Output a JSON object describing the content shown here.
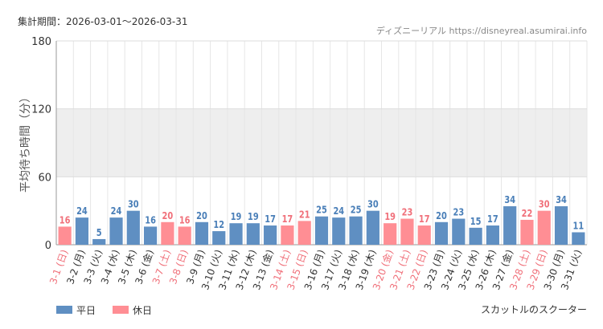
{
  "header": {
    "period": "集計期間：2026-03-01〜2026-03-31",
    "source": "ディズニーリアル https://disneyreal.asumirai.info",
    "footer": "スカットルのスクーター"
  },
  "colors": {
    "weekday": "#5f8fc2",
    "weekday_label": "#4a7fb8",
    "holiday": "#ff8e94",
    "holiday_label": "#f0707a",
    "band": "#eeeeee",
    "grid": "#e6e6e6"
  },
  "chart_data": {
    "type": "bar",
    "ylabel": "平均待ち時間（分）",
    "ylim": [
      0,
      180
    ],
    "yticks": [
      0,
      60,
      120,
      180
    ],
    "band": [
      60,
      120
    ],
    "grid": true,
    "legend_position": "bottom-left",
    "legend": [
      {
        "name": "平日",
        "key": "weekday"
      },
      {
        "name": "休日",
        "key": "holiday"
      }
    ],
    "categories": [
      "3-1 (日)",
      "3-2 (月)",
      "3-3 (火)",
      "3-4 (水)",
      "3-5 (木)",
      "3-6 (金)",
      "3-7 (土)",
      "3-8 (日)",
      "3-9 (月)",
      "3-10 (火)",
      "3-11 (水)",
      "3-12 (木)",
      "3-13 (金)",
      "3-14 (土)",
      "3-15 (日)",
      "3-16 (月)",
      "3-17 (火)",
      "3-18 (水)",
      "3-19 (木)",
      "3-20 (金)",
      "3-21 (土)",
      "3-22 (日)",
      "3-23 (月)",
      "3-24 (火)",
      "3-25 (水)",
      "3-26 (木)",
      "3-27 (金)",
      "3-28 (土)",
      "3-29 (日)",
      "3-30 (月)",
      "3-31 (火)"
    ],
    "values": [
      16,
      24,
      5,
      24,
      30,
      16,
      20,
      16,
      20,
      12,
      19,
      19,
      17,
      17,
      21,
      25,
      24,
      25,
      30,
      19,
      23,
      17,
      20,
      23,
      15,
      17,
      34,
      22,
      30,
      34,
      11
    ],
    "day_type": [
      "holiday",
      "weekday",
      "weekday",
      "weekday",
      "weekday",
      "weekday",
      "holiday",
      "holiday",
      "weekday",
      "weekday",
      "weekday",
      "weekday",
      "weekday",
      "holiday",
      "holiday",
      "weekday",
      "weekday",
      "weekday",
      "weekday",
      "holiday",
      "holiday",
      "holiday",
      "weekday",
      "weekday",
      "weekday",
      "weekday",
      "weekday",
      "holiday",
      "holiday",
      "weekday",
      "weekday"
    ]
  }
}
